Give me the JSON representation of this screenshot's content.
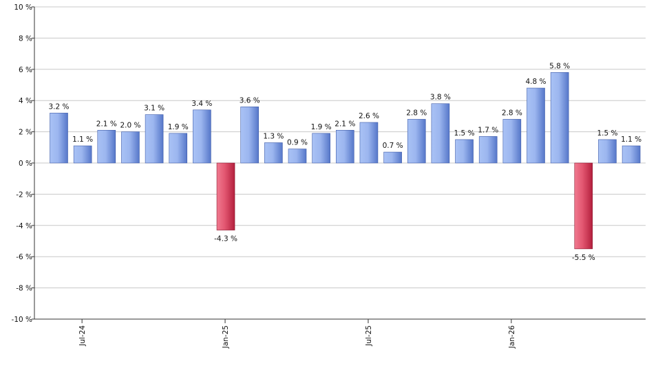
{
  "chart_data": {
    "type": "bar",
    "title": "",
    "xlabel": "",
    "ylabel": "",
    "ylim": [
      -10,
      10
    ],
    "y_ticks": [
      10,
      8,
      6,
      4,
      2,
      0,
      -2,
      -4,
      -6,
      -8,
      -10
    ],
    "y_tick_suffix": " %",
    "grid": true,
    "legend": "none",
    "x_tick_labels": [
      {
        "label": "Jul-24",
        "index": 1
      },
      {
        "label": "Jan-25",
        "index": 7
      },
      {
        "label": "Jul-25",
        "index": 13
      },
      {
        "label": "Jan-26",
        "index": 19
      }
    ],
    "values": [
      3.2,
      1.1,
      2.1,
      2.0,
      3.1,
      1.9,
      3.4,
      -4.3,
      3.6,
      1.3,
      0.9,
      1.9,
      2.1,
      2.6,
      0.7,
      2.8,
      3.8,
      1.5,
      1.7,
      2.8,
      4.8,
      5.8,
      -5.5,
      1.5,
      1.1
    ],
    "value_labels": [
      "3.2 %",
      "1.1 %",
      "2.1 %",
      "2.0 %",
      "3.1 %",
      "1.9 %",
      "3.4 %",
      "-4.3 %",
      "3.6 %",
      "1.3 %",
      "0.9 %",
      "1.9 %",
      "2.1 %",
      "2.6 %",
      "0.7 %",
      "2.8 %",
      "3.8 %",
      "1.5 %",
      "1.7 %",
      "2.8 %",
      "4.8 %",
      "5.8 %",
      "-5.5 %",
      "1.5 %",
      "1.1 %"
    ],
    "colors": {
      "positive_light": "#a9c2f5",
      "positive_dark": "#5677c9",
      "negative_light": "#f07a90",
      "negative_dark": "#b31f3d",
      "grid": "#c8c8c8",
      "axis": "#333333"
    }
  }
}
